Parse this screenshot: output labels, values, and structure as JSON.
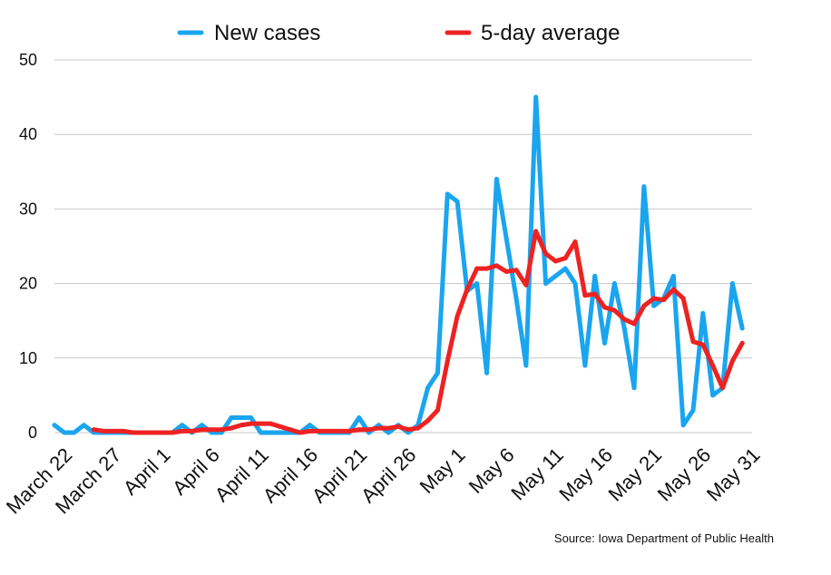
{
  "chart_data": {
    "type": "line",
    "title": "",
    "xlabel": "",
    "ylabel": "",
    "ylim": [
      0,
      50
    ],
    "yticks": [
      0,
      10,
      20,
      30,
      40,
      50
    ],
    "grid": "horizontal",
    "legend_position": "top",
    "x": [
      "March 21",
      "March 22",
      "March 23",
      "March 24",
      "March 25",
      "March 26",
      "March 27",
      "March 28",
      "March 29",
      "March 30",
      "March 31",
      "April 1",
      "April 2",
      "April 3",
      "April 4",
      "April 5",
      "April 6",
      "April 7",
      "April 8",
      "April 9",
      "April 10",
      "April 11",
      "April 12",
      "April 13",
      "April 14",
      "April 15",
      "April 16",
      "April 17",
      "April 18",
      "April 19",
      "April 20",
      "April 21",
      "April 22",
      "April 23",
      "April 24",
      "April 25",
      "April 26",
      "April 27",
      "April 28",
      "April 29",
      "April 30",
      "May 1",
      "May 2",
      "May 3",
      "May 4",
      "May 5",
      "May 6",
      "May 7",
      "May 8",
      "May 9",
      "May 10",
      "May 11",
      "May 12",
      "May 13",
      "May 14",
      "May 15",
      "May 16",
      "May 17",
      "May 18",
      "May 19",
      "May 20",
      "May 21",
      "May 22",
      "May 23",
      "May 24",
      "May 25",
      "May 26",
      "May 27",
      "May 28",
      "May 29",
      "May 30",
      "May 31"
    ],
    "x_tick_labels": [
      "March 22",
      "March 27",
      "April 1",
      "April 6",
      "April 11",
      "April 16",
      "April 21",
      "April 26",
      "May 1",
      "May 6",
      "May 11",
      "May 16",
      "May 21",
      "May 26",
      "May 31"
    ],
    "series": [
      {
        "name": "New cases",
        "color": "#1aa5ef",
        "values": [
          1,
          0,
          0,
          1,
          0,
          0,
          0,
          0,
          0,
          0,
          0,
          0,
          0,
          1,
          0,
          1,
          0,
          0,
          2,
          2,
          2,
          0,
          0,
          0,
          0,
          0,
          1,
          0,
          0,
          0,
          0,
          2,
          0,
          1,
          0,
          1,
          0,
          1,
          6,
          8,
          32,
          31,
          19,
          20,
          8,
          34,
          26,
          18,
          9,
          45,
          20,
          21,
          22,
          20,
          9,
          21,
          12,
          20,
          14,
          6,
          33,
          17,
          18,
          21,
          1,
          3,
          16,
          5,
          6,
          20,
          14,
          null
        ]
      },
      {
        "name": "5-day average",
        "color": "#ee2222",
        "values": [
          null,
          null,
          null,
          null,
          0.4,
          0.2,
          0.2,
          0.2,
          0,
          0,
          0,
          0,
          0,
          0.2,
          0.2,
          0.4,
          0.4,
          0.4,
          0.6,
          1,
          1.2,
          1.2,
          1.2,
          0.8,
          0.4,
          0,
          0.2,
          0.2,
          0.2,
          0.2,
          0.2,
          0.4,
          0.4,
          0.6,
          0.6,
          0.8,
          0.4,
          0.6,
          1.6,
          3,
          9.6,
          15.6,
          19.2,
          22,
          22,
          22.4,
          21.6,
          21.8,
          19.8,
          27,
          24,
          23,
          23.4,
          25.6,
          18.4,
          18.6,
          16.8,
          16.4,
          15.2,
          14.6,
          17,
          18,
          17.8,
          19.2,
          18,
          12.2,
          11.8,
          9,
          6,
          9.6,
          12,
          null
        ]
      }
    ],
    "source": "Source: Iowa Department of Public Health"
  }
}
